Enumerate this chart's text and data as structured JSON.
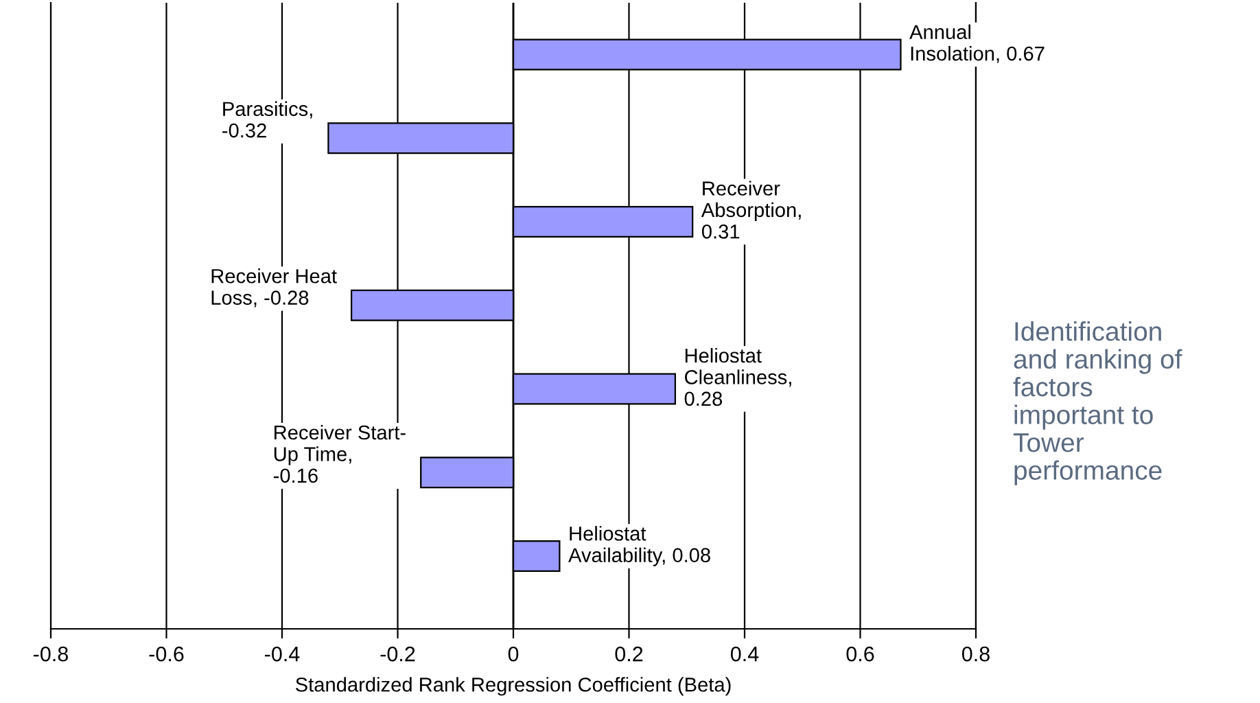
{
  "chart_data": {
    "type": "bar",
    "orientation": "horizontal",
    "categories": [
      "Annual\nInsolation, 0.67",
      "Parasitics,\n-0.32",
      "Receiver\nAbsorption,\n0.31",
      "Receiver Heat\nLoss, -0.28",
      "Heliostat\nCleanliness,\n0.28",
      "Receiver Start-\nUp Time,\n-0.16",
      "Heliostat\nAvailability, 0.08"
    ],
    "values": [
      0.67,
      -0.32,
      0.31,
      -0.28,
      0.28,
      -0.16,
      0.08
    ],
    "color": "#9999ff",
    "xlabel": "Standardized Rank Regression Coefficient (Beta)",
    "xlim": [
      -0.8,
      0.8
    ],
    "xticks": [
      -0.8,
      -0.6,
      -0.4,
      -0.2,
      0,
      0.2,
      0.4,
      0.6,
      0.8
    ],
    "grid": "x",
    "annotations": [
      "Identification\nand ranking of\nfactors\nimportant to\nTower\nperformance"
    ]
  }
}
